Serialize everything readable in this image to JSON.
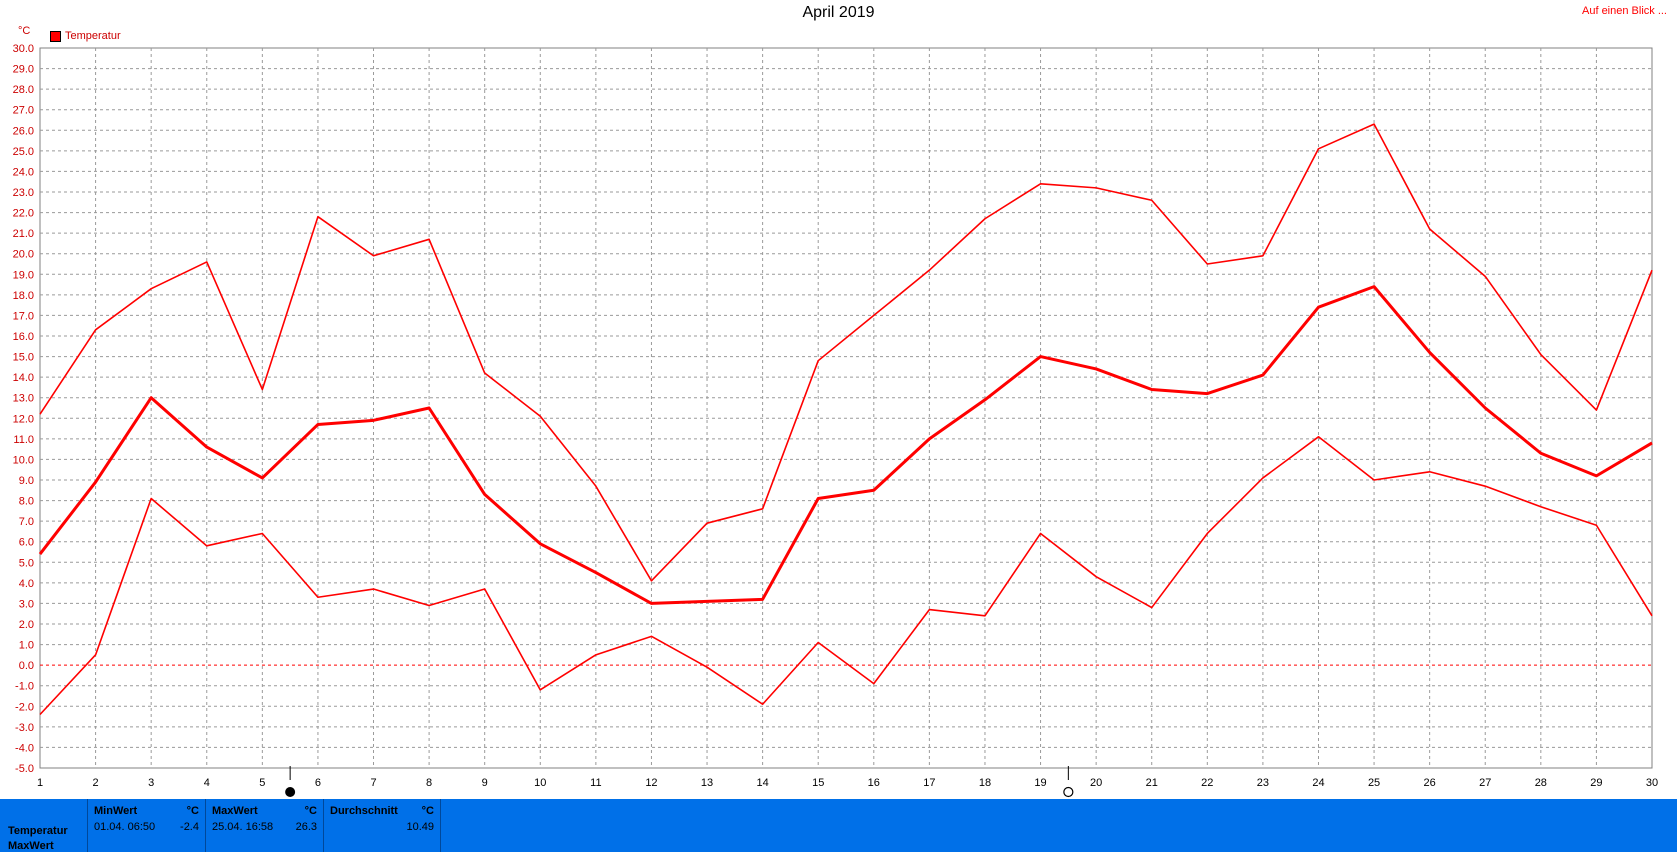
{
  "header": {
    "title": "April 2019",
    "overview_link": "Auf einen Blick ...",
    "unit": "°C",
    "legend_label": "Temperatur"
  },
  "colors": {
    "series": "#ff0000",
    "grid": "#9a9a9a",
    "zero_line": "#ff0000",
    "stats_bg": "#0070e8"
  },
  "moon_phases": [
    {
      "day": 5.5,
      "icon": "full-moon-icon"
    },
    {
      "day": 19.5,
      "icon": "new-moon-icon"
    }
  ],
  "chart_data": {
    "type": "line",
    "title": "April 2019",
    "ylabel": "°C",
    "x": [
      1,
      2,
      3,
      4,
      5,
      6,
      7,
      8,
      9,
      10,
      11,
      12,
      13,
      14,
      15,
      16,
      17,
      18,
      19,
      20,
      21,
      22,
      23,
      24,
      25,
      26,
      27,
      28,
      29,
      30
    ],
    "xlim": [
      1,
      30
    ],
    "ylim": [
      -5,
      30
    ],
    "ytick_step": 1,
    "grid": true,
    "legend_position": "top-left",
    "series": [
      {
        "name": "Temperatur",
        "role": "max",
        "values": [
          12.2,
          16.3,
          18.3,
          19.6,
          13.4,
          21.8,
          19.9,
          20.7,
          14.2,
          12.1,
          8.7,
          4.1,
          6.9,
          7.6,
          14.8,
          17.0,
          19.2,
          21.7,
          23.4,
          23.2,
          22.6,
          19.5,
          19.9,
          25.1,
          26.3,
          21.2,
          18.9,
          15.1,
          12.4,
          19.2
        ]
      },
      {
        "name": "",
        "role": "mean",
        "values": [
          5.4,
          8.9,
          13.0,
          10.6,
          9.1,
          11.7,
          11.9,
          12.5,
          8.3,
          5.9,
          4.5,
          3.0,
          3.1,
          3.2,
          8.1,
          8.5,
          11.0,
          12.9,
          15.0,
          14.4,
          13.4,
          13.2,
          14.1,
          17.4,
          18.4,
          15.2,
          12.5,
          10.3,
          9.2,
          10.8
        ]
      },
      {
        "name": "",
        "role": "min",
        "values": [
          -2.4,
          0.5,
          8.1,
          5.8,
          6.4,
          3.3,
          3.7,
          2.9,
          3.7,
          -1.2,
          0.5,
          1.4,
          -0.1,
          -1.9,
          1.1,
          -0.9,
          2.7,
          2.4,
          6.4,
          4.3,
          2.8,
          6.4,
          9.1,
          11.1,
          9.0,
          9.4,
          8.7,
          7.7,
          6.8,
          2.4
        ]
      }
    ]
  },
  "stats": {
    "row_labels": [
      "Temperatur",
      "MaxWert"
    ],
    "min": {
      "header": "MinWert",
      "unit": "°C",
      "date": "01.04.  06:50",
      "value": "-2.4"
    },
    "max": {
      "header": "MaxWert",
      "unit": "°C",
      "date": "25.04.  16:58",
      "value": "26.3"
    },
    "avg": {
      "header": "Durchschnitt",
      "unit": "°C",
      "value": "10.49"
    }
  }
}
